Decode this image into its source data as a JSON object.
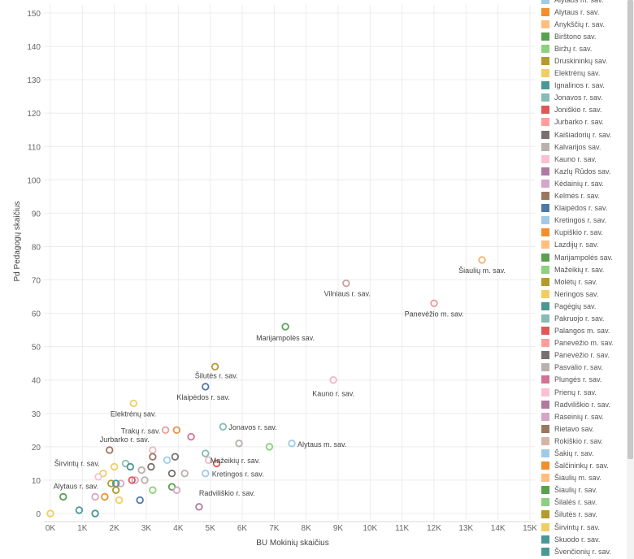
{
  "chart_data": {
    "type": "scatter",
    "xlabel": "BU Mokinių skaičius",
    "ylabel": "Pd Pedagogų skaičius",
    "xlim": [
      0,
      15000
    ],
    "ylim": [
      0,
      150
    ],
    "x_ticks": [
      0,
      1000,
      2000,
      3000,
      4000,
      5000,
      6000,
      7000,
      8000,
      9000,
      10000,
      11000,
      12000,
      13000,
      14000,
      15000
    ],
    "x_tick_labels": [
      "0K",
      "1K",
      "2K",
      "3K",
      "4K",
      "5K",
      "6K",
      "7K",
      "8K",
      "9K",
      "10K",
      "11K",
      "12K",
      "13K",
      "14K",
      "15K"
    ],
    "y_ticks": [
      0,
      10,
      20,
      30,
      40,
      50,
      60,
      70,
      80,
      90,
      100,
      110,
      120,
      130,
      140,
      150
    ],
    "y_tick_labels": [
      "0",
      "10",
      "20",
      "30",
      "40",
      "50",
      "60",
      "70",
      "80",
      "90",
      "100",
      "110",
      "120",
      "130",
      "140",
      "150"
    ],
    "grid": true,
    "legend_position": "right",
    "points": [
      {
        "x": 13500,
        "y": 76,
        "label": "Šiaulių m. sav.",
        "color": "#f4b26a"
      },
      {
        "x": 9250,
        "y": 69,
        "label": "Vilniaus r. sav.",
        "color": "#c9a2a2"
      },
      {
        "x": 12000,
        "y": 63,
        "label": "Panevėžio m. sav.",
        "color": "#f09a9a"
      },
      {
        "x": 7350,
        "y": 56,
        "label": "Marijampolės sav.",
        "color": "#5fa35f"
      },
      {
        "x": 5150,
        "y": 44,
        "label": "Šilutės r. sav.",
        "color": "#b89a32"
      },
      {
        "x": 8850,
        "y": 40,
        "label": "Kauno r. sav.",
        "color": "#efb7c6"
      },
      {
        "x": 4850,
        "y": 38,
        "label": "Klaipėdos r. sav.",
        "color": "#5478a7"
      },
      {
        "x": 2600,
        "y": 33,
        "label": "Elektrėnų sav.",
        "color": "#f1cd6a"
      },
      {
        "x": 5400,
        "y": 26,
        "label": "Jonavos r. sav.",
        "color": "#86bcb6"
      },
      {
        "x": 3950,
        "y": 25,
        "label": "Trakų r. sav.",
        "color": "#e49444"
      },
      {
        "x": 3600,
        "y": 25,
        "label": "",
        "color": "#f09a9a"
      },
      {
        "x": 4400,
        "y": 23,
        "label": "",
        "color": "#d37295"
      },
      {
        "x": 7550,
        "y": 21,
        "label": "Alytaus m. sav.",
        "color": "#a0cbe8"
      },
      {
        "x": 6850,
        "y": 20,
        "label": "",
        "color": "#8cd17d"
      },
      {
        "x": 5900,
        "y": 21,
        "label": "",
        "color": "#bab0ac"
      },
      {
        "x": 1850,
        "y": 19,
        "label": "Jurbarko r. sav.",
        "color": "#9d7660"
      },
      {
        "x": 3200,
        "y": 19,
        "label": "",
        "color": "#efb7c6"
      },
      {
        "x": 4850,
        "y": 18,
        "label": "Mažeikių r. sav.",
        "color": "#86bcb6"
      },
      {
        "x": 3200,
        "y": 17,
        "label": "",
        "color": "#9d7660"
      },
      {
        "x": 3900,
        "y": 17,
        "label": "",
        "color": "#79706e"
      },
      {
        "x": 3650,
        "y": 16,
        "label": "",
        "color": "#a0cbe8"
      },
      {
        "x": 4950,
        "y": 16,
        "label": "",
        "color": "#efb7c6"
      },
      {
        "x": 5200,
        "y": 15,
        "label": "",
        "color": "#e15759"
      },
      {
        "x": 2350,
        "y": 15,
        "label": "",
        "color": "#86bcb6"
      },
      {
        "x": 2500,
        "y": 14,
        "label": "",
        "color": "#499894"
      },
      {
        "x": 2000,
        "y": 14,
        "label": "Širvintų r. sav.",
        "color": "#f1ce63"
      },
      {
        "x": 3150,
        "y": 14,
        "label": "",
        "color": "#79706e"
      },
      {
        "x": 2850,
        "y": 13,
        "label": "",
        "color": "#bab0ac"
      },
      {
        "x": 1650,
        "y": 12,
        "label": "",
        "color": "#f1ce63"
      },
      {
        "x": 3800,
        "y": 12,
        "label": "",
        "color": "#79706e"
      },
      {
        "x": 4200,
        "y": 12,
        "label": "",
        "color": "#bab0ac"
      },
      {
        "x": 4850,
        "y": 12,
        "label": "Kretingos r. sav.",
        "color": "#a0cbe8"
      },
      {
        "x": 1500,
        "y": 11,
        "label": "",
        "color": "#fabfd2"
      },
      {
        "x": 2650,
        "y": 10,
        "label": "",
        "color": "#d4a6c8"
      },
      {
        "x": 2550,
        "y": 10,
        "label": "",
        "color": "#e15759"
      },
      {
        "x": 2950,
        "y": 10,
        "label": "",
        "color": "#bab0ac"
      },
      {
        "x": 2200,
        "y": 9,
        "label": "",
        "color": "#d4a6c8"
      },
      {
        "x": 1900,
        "y": 9,
        "label": "",
        "color": "#b6992d"
      },
      {
        "x": 2050,
        "y": 9,
        "label": "",
        "color": "#499894"
      },
      {
        "x": 3800,
        "y": 8,
        "label": "",
        "color": "#59a14f"
      },
      {
        "x": 3950,
        "y": 7,
        "label": "",
        "color": "#d4a6c8"
      },
      {
        "x": 3200,
        "y": 7,
        "label": "",
        "color": "#8cd17d"
      },
      {
        "x": 2050,
        "y": 7,
        "label": "",
        "color": "#b6992d"
      },
      {
        "x": 1400,
        "y": 5,
        "label": "",
        "color": "#d4a6c8"
      },
      {
        "x": 1700,
        "y": 5,
        "label": "",
        "color": "#f28e2b"
      },
      {
        "x": 400,
        "y": 5,
        "label": "Alytaus r. sav.",
        "color": "#59a14f"
      },
      {
        "x": 2150,
        "y": 4,
        "label": "",
        "color": "#f1ce63"
      },
      {
        "x": 2800,
        "y": 4,
        "label": "",
        "color": "#4e79a7"
      },
      {
        "x": 4650,
        "y": 2,
        "label": "Radviliškio r. sav.",
        "color": "#a87c9f"
      },
      {
        "x": 900,
        "y": 1,
        "label": "",
        "color": "#499894"
      },
      {
        "x": 1400,
        "y": 0,
        "label": "",
        "color": "#499894"
      },
      {
        "x": 0,
        "y": 0,
        "label": "",
        "color": "#f1ce63"
      }
    ]
  },
  "legend": {
    "items": [
      {
        "label": "Alytaus m. sav.",
        "color": "#a0cbe8"
      },
      {
        "label": "Alytaus r. sav.",
        "color": "#f28e2b"
      },
      {
        "label": "Anykščių r. sav.",
        "color": "#ffbe7d"
      },
      {
        "label": "Birštono sav.",
        "color": "#59a14f"
      },
      {
        "label": "Biržų r. sav.",
        "color": "#8cd17d"
      },
      {
        "label": "Druskininkų sav.",
        "color": "#b6992d"
      },
      {
        "label": "Elektrėnų sav.",
        "color": "#f1ce63"
      },
      {
        "label": "Ignalinos r. sav.",
        "color": "#499894"
      },
      {
        "label": "Jonavos r. sav.",
        "color": "#86bcb6"
      },
      {
        "label": "Joniškio r. sav.",
        "color": "#e15759"
      },
      {
        "label": "Jurbarko r. sav.",
        "color": "#ff9d9a"
      },
      {
        "label": "Kaišiadorių r. sav.",
        "color": "#79706e"
      },
      {
        "label": "Kalvarijos sav.",
        "color": "#bab0ac"
      },
      {
        "label": "Kauno r. sav.",
        "color": "#fabfd2"
      },
      {
        "label": "Kazlų Rūdos sav.",
        "color": "#b07aa1"
      },
      {
        "label": "Kėdainių r. sav.",
        "color": "#d4a6c8"
      },
      {
        "label": "Kelmės r. sav.",
        "color": "#9d7660"
      },
      {
        "label": "Klaipėdos r. sav.",
        "color": "#4e79a7"
      },
      {
        "label": "Kretingos r. sav.",
        "color": "#a0cbe8"
      },
      {
        "label": "Kupiškio r. sav.",
        "color": "#f28e2b"
      },
      {
        "label": "Lazdijų r. sav.",
        "color": "#ffbe7d"
      },
      {
        "label": "Marijampolės sav.",
        "color": "#59a14f"
      },
      {
        "label": "Mažeikių r. sav.",
        "color": "#8cd17d"
      },
      {
        "label": "Molėtų r. sav.",
        "color": "#b6992d"
      },
      {
        "label": "Neringos sav.",
        "color": "#f1ce63"
      },
      {
        "label": "Pagėgių sav.",
        "color": "#499894"
      },
      {
        "label": "Pakruojo r. sav.",
        "color": "#86bcb6"
      },
      {
        "label": "Palangos m. sav.",
        "color": "#e15759"
      },
      {
        "label": "Panevėžio m. sav.",
        "color": "#ff9d9a"
      },
      {
        "label": "Panevėžio r. sav.",
        "color": "#79706e"
      },
      {
        "label": "Pasvalio r. sav.",
        "color": "#bab0ac"
      },
      {
        "label": "Plungės r. sav.",
        "color": "#d37295"
      },
      {
        "label": "Prienų r. sav.",
        "color": "#fabfd2"
      },
      {
        "label": "Radviliškio r. sav.",
        "color": "#b07aa1"
      },
      {
        "label": "Raseinių r. sav.",
        "color": "#d4a6c8"
      },
      {
        "label": "Rietavo sav.",
        "color": "#9d7660"
      },
      {
        "label": "Rokiškio r. sav.",
        "color": "#d7b5a6"
      },
      {
        "label": "Šakių r. sav.",
        "color": "#a0cbe8"
      },
      {
        "label": "Šalčininkų r. sav.",
        "color": "#f28e2b"
      },
      {
        "label": "Šiaulių m. sav.",
        "color": "#ffbe7d"
      },
      {
        "label": "Šiaulių r. sav.",
        "color": "#59a14f"
      },
      {
        "label": "Šilalės r. sav.",
        "color": "#8cd17d"
      },
      {
        "label": "Šilutės r. sav.",
        "color": "#b6992d"
      },
      {
        "label": "Širvintų r. sav.",
        "color": "#f1ce63"
      },
      {
        "label": "Skuodo r. sav.",
        "color": "#499894"
      },
      {
        "label": "Švenčionių r. sav.",
        "color": "#499894"
      }
    ]
  }
}
